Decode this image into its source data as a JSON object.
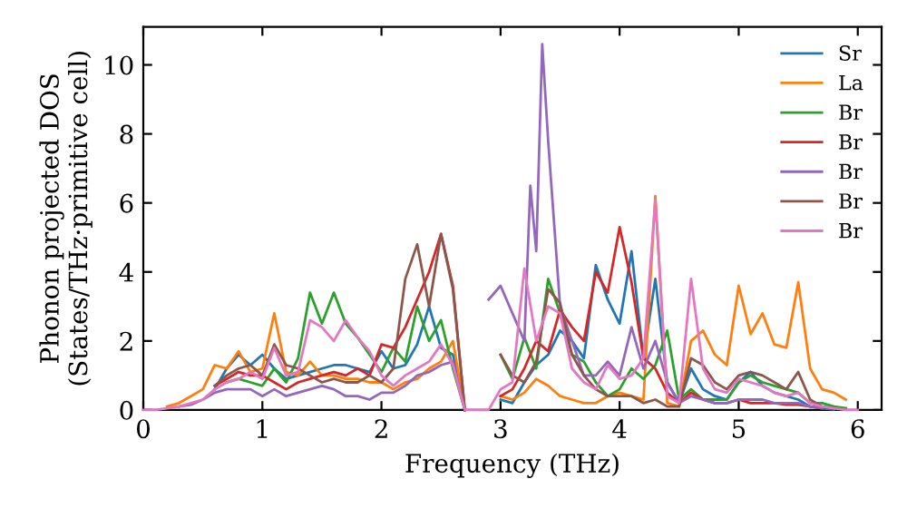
{
  "chart_data": {
    "type": "line",
    "xlabel": "Frequency (THz)",
    "ylabel": "Phonon projected DOS\n(States/THz·primitive cell)",
    "xlim": [
      0,
      6.2
    ],
    "ylim": [
      0,
      11.1
    ],
    "xticks": [
      0,
      1,
      2,
      3,
      4,
      5,
      6
    ],
    "yticks": [
      0,
      2,
      4,
      6,
      8,
      10
    ],
    "grid": false,
    "legend": "top right",
    "marker": "none",
    "line_style": "solid",
    "x": [
      0,
      0.1,
      0.2,
      0.3,
      0.4,
      0.5,
      0.6,
      0.7,
      0.8,
      0.9,
      1.0,
      1.1,
      1.2,
      1.3,
      1.4,
      1.5,
      1.6,
      1.7,
      1.8,
      1.9,
      2.0,
      2.1,
      2.2,
      2.3,
      2.4,
      2.5,
      2.6,
      2.7,
      2.8,
      2.9,
      3.0,
      3.1,
      3.2,
      3.3,
      3.4,
      3.5,
      3.6,
      3.7,
      3.8,
      3.9,
      4.0,
      4.1,
      4.2,
      4.3,
      4.4,
      4.5,
      4.6,
      4.7,
      4.8,
      4.9,
      5.0,
      5.1,
      5.2,
      5.3,
      5.4,
      5.5,
      5.6,
      5.7,
      5.8,
      5.9,
      6.0
    ],
    "series": [
      {
        "name": "Sr",
        "color": "#1f77b4",
        "values": [
          null,
          null,
          null,
          null,
          null,
          null,
          0.6,
          1.2,
          1.6,
          1.3,
          1.6,
          1.2,
          0.9,
          1.0,
          1.1,
          1.2,
          1.3,
          1.3,
          1.2,
          1.1,
          1.7,
          1.2,
          1.3,
          1.9,
          3.0,
          1.8,
          1.6,
          0,
          null,
          null,
          0.3,
          0.2,
          0.8,
          1.3,
          1.6,
          2.3,
          2.0,
          1.5,
          4.2,
          3.2,
          2.5,
          4.6,
          1.5,
          3.8,
          0.8,
          0.2,
          1.2,
          0.6,
          0.4,
          0.3,
          0.8,
          1.1,
          0.7,
          0.5,
          0.4,
          0.3,
          0.1,
          0.05,
          0.02,
          null,
          null
        ]
      },
      {
        "name": "La",
        "color": "#ff7f0e",
        "values": [
          null,
          null,
          0.1,
          0.2,
          0.4,
          0.6,
          1.3,
          1.2,
          1.7,
          1.1,
          1.2,
          2.8,
          1.1,
          1.0,
          1.4,
          1.0,
          1.0,
          0.9,
          0.9,
          0.8,
          0.8,
          0.6,
          0.8,
          0.9,
          1.2,
          1.4,
          2.0,
          0,
          null,
          null,
          0.4,
          0.3,
          0.5,
          0.9,
          0.7,
          0.4,
          0.3,
          0.2,
          0.2,
          0.4,
          0.5,
          0.4,
          0.3,
          6.2,
          0.2,
          0.1,
          2.0,
          2.3,
          1.6,
          1.3,
          3.6,
          2.2,
          2.8,
          1.9,
          1.8,
          3.7,
          1.2,
          0.6,
          0.5,
          0.3,
          null
        ]
      },
      {
        "name": "Br",
        "color": "#2ca02c",
        "values": [
          null,
          null,
          null,
          null,
          null,
          null,
          null,
          0.8,
          0.9,
          0.8,
          0.7,
          1.2,
          0.8,
          1.5,
          3.4,
          2.5,
          3.4,
          2.5,
          2.1,
          1.6,
          1.1,
          1.8,
          1.4,
          3.0,
          2.0,
          2.6,
          1.2,
          0,
          null,
          null,
          1.6,
          0.9,
          2.1,
          1.2,
          3.8,
          2.8,
          1.6,
          1.4,
          0.8,
          0.4,
          0.6,
          1.2,
          0.9,
          1.3,
          2.3,
          0.3,
          0.6,
          0.3,
          0.3,
          0.3,
          0.8,
          1.0,
          0.8,
          0.7,
          0.6,
          0.5,
          0.2,
          0.2,
          0.1,
          0.05,
          null
        ]
      },
      {
        "name": "Br",
        "color": "#d62728",
        "values": [
          null,
          null,
          null,
          null,
          null,
          null,
          0.7,
          0.9,
          1.1,
          1.0,
          1.0,
          0.8,
          0.6,
          0.8,
          0.9,
          1.0,
          1.1,
          1.0,
          1.2,
          1.0,
          1.9,
          1.8,
          2.4,
          3.2,
          4.0,
          5.1,
          3.6,
          0,
          null,
          null,
          0.4,
          0.6,
          1.2,
          2.0,
          1.7,
          2.9,
          2.4,
          2.0,
          4.0,
          3.4,
          5.3,
          3.7,
          1.5,
          1.2,
          0.5,
          0.2,
          0.5,
          0.3,
          0.2,
          0.2,
          0.3,
          0.2,
          0.2,
          0.2,
          0.15,
          0.15,
          0.1,
          0.05,
          null,
          null,
          null
        ]
      },
      {
        "name": "Br",
        "color": "#9467bd",
        "x": [
          0.3,
          0.4,
          0.5,
          0.6,
          0.7,
          0.8,
          0.9,
          1.0,
          1.1,
          1.2,
          1.3,
          1.4,
          1.5,
          1.6,
          1.7,
          1.8,
          1.9,
          2.0,
          2.1,
          2.2,
          2.3,
          2.4,
          2.5,
          2.6,
          2.7,
          2.8,
          2.9,
          3.0,
          3.1,
          3.2,
          3.25,
          3.3,
          3.35,
          3.4,
          3.5,
          3.6,
          3.7,
          3.8,
          3.9,
          4.0,
          4.1,
          4.2,
          4.3,
          4.4,
          4.5,
          4.6,
          4.7,
          4.8,
          4.9,
          5.0,
          5.1,
          5.2,
          5.3,
          5.4,
          5.5,
          5.6,
          5.7
        ],
        "values": [
          0.1,
          0.15,
          0.3,
          0.5,
          0.6,
          0.6,
          0.6,
          0.4,
          0.6,
          0.4,
          0.5,
          0.6,
          0.7,
          0.6,
          0.4,
          0.4,
          0.3,
          0.5,
          0.5,
          0.7,
          1.0,
          1.1,
          1.3,
          1.4,
          0,
          null,
          3.2,
          3.6,
          2.8,
          2.0,
          6.5,
          4.6,
          10.6,
          7.8,
          3.0,
          2.0,
          1.0,
          1.0,
          1.4,
          1.0,
          2.4,
          1.2,
          2.0,
          0.8,
          0.2,
          0.4,
          0.3,
          0.2,
          0.2,
          0.3,
          0.3,
          0.3,
          0.2,
          0.2,
          0.2,
          0.1,
          0.05
        ]
      },
      {
        "name": "Br",
        "color": "#8c564b",
        "values": [
          null,
          null,
          null,
          null,
          null,
          null,
          0.7,
          1.0,
          1.2,
          1.3,
          1.0,
          1.9,
          1.3,
          1.2,
          1.0,
          0.8,
          0.9,
          0.8,
          0.8,
          1.0,
          0.8,
          1.2,
          3.8,
          4.8,
          3.0,
          5.1,
          3.5,
          0,
          null,
          null,
          1.6,
          1.0,
          0.8,
          1.4,
          3.5,
          3.1,
          1.6,
          1.0,
          0.6,
          0.4,
          0.4,
          0.4,
          0.2,
          0.3,
          0.1,
          0.1,
          1.5,
          1.3,
          0.8,
          0.6,
          1.0,
          1.1,
          1.0,
          0.8,
          0.6,
          1.1,
          0.3,
          0.1,
          0.05,
          null,
          null
        ]
      },
      {
        "name": "Br",
        "color": "#e377c2",
        "values": [
          0,
          0,
          0.05,
          0.1,
          0.2,
          0.3,
          0.6,
          0.8,
          0.9,
          1.1,
          0.9,
          1.8,
          1.0,
          1.1,
          2.6,
          2.4,
          2.0,
          2.6,
          2.1,
          1.7,
          1.0,
          0.7,
          1.0,
          1.2,
          1.4,
          1.9,
          1.3,
          0,
          0,
          0,
          0.6,
          0.8,
          4.1,
          2.0,
          3.0,
          2.8,
          1.2,
          0.8,
          0.6,
          1.3,
          0.9,
          1.0,
          1.5,
          6.1,
          0.4,
          0.2,
          3.8,
          1.2,
          0.6,
          0.5,
          0.9,
          0.8,
          0.7,
          0.5,
          0.4,
          0.5,
          0.2,
          0.1,
          0.05,
          0,
          0
        ]
      }
    ]
  }
}
